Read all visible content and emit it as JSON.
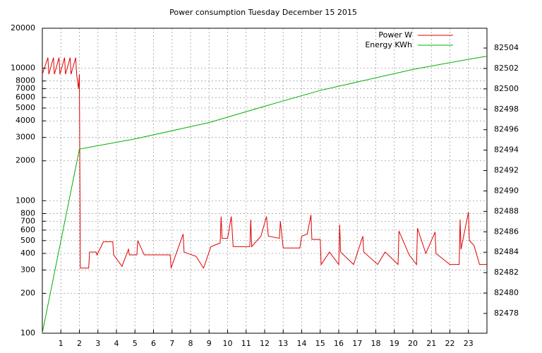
{
  "chart_data": {
    "type": "line",
    "title": "Power consumption Tuesday December 15 2015",
    "xlim": [
      0,
      24
    ],
    "xticks": [
      1,
      2,
      3,
      4,
      5,
      6,
      7,
      8,
      9,
      10,
      11,
      12,
      13,
      14,
      15,
      16,
      17,
      18,
      19,
      20,
      21,
      22,
      23
    ],
    "ylim": [
      100,
      20000
    ],
    "ylog": true,
    "yticks": [
      100,
      200,
      300,
      400,
      500,
      600,
      700,
      800,
      1000,
      2000,
      3000,
      4000,
      5000,
      6000,
      7000,
      8000,
      10000,
      20000
    ],
    "y2lim": [
      82476.06,
      82505.94
    ],
    "y2ticks": [
      82478,
      82480,
      82482,
      82484,
      82486,
      82488,
      82490,
      82492,
      82494,
      82496,
      82498,
      82500,
      82502,
      82504
    ],
    "grid": true,
    "legend": "top-right",
    "series": [
      {
        "name": "Power W",
        "color": "#e00000",
        "x": [
          0,
          0.3,
          0.35,
          0.6,
          0.65,
          0.9,
          0.95,
          1.2,
          1.25,
          1.5,
          1.55,
          1.8,
          1.85,
          1.95,
          2.0,
          2.05,
          2.5,
          2.55,
          2.9,
          2.95,
          3.3,
          3.8,
          3.85,
          4.3,
          4.65,
          4.7,
          5.1,
          5.15,
          5.5,
          6.9,
          6.95,
          7.2,
          7.6,
          7.65,
          8.3,
          8.7,
          9.1,
          9.6,
          9.65,
          9.7,
          10.0,
          10.2,
          10.3,
          11.2,
          11.25,
          11.3,
          11.8,
          12.1,
          12.2,
          12.8,
          12.85,
          13.0,
          13.9,
          14.0,
          14.3,
          14.5,
          14.55,
          15.0,
          15.05,
          15.5,
          16.0,
          16.05,
          16.1,
          16.8,
          17.3,
          17.35,
          18.1,
          18.5,
          19.2,
          19.25,
          19.8,
          20.2,
          20.25,
          20.7,
          21.2,
          21.25,
          22.0,
          22.5,
          22.55,
          22.6,
          23.0,
          23.05,
          23.3,
          23.6,
          24
        ],
        "values": [
          9000,
          12000,
          9000,
          12000,
          9000,
          12000,
          9000,
          12000,
          9000,
          12000,
          9000,
          12000,
          9000,
          7000,
          9000,
          310,
          310,
          410,
          410,
          390,
          490,
          490,
          390,
          320,
          430,
          390,
          390,
          500,
          390,
          390,
          310,
          390,
          560,
          410,
          380,
          310,
          450,
          480,
          760,
          520,
          520,
          760,
          450,
          450,
          720,
          450,
          540,
          760,
          540,
          520,
          700,
          440,
          440,
          540,
          560,
          780,
          510,
          510,
          330,
          410,
          330,
          660,
          410,
          330,
          540,
          410,
          330,
          410,
          330,
          590,
          390,
          330,
          620,
          400,
          580,
          400,
          330,
          330,
          720,
          430,
          820,
          500,
          460,
          330,
          330
        ]
      },
      {
        "name": "Energy KWh",
        "color": "#00b000",
        "axis": "y2",
        "x": [
          0,
          2,
          5,
          9,
          12,
          15,
          20,
          23,
          24
        ],
        "values": [
          82476.1,
          82494.1,
          82495.1,
          82496.7,
          82498.3,
          82499.85,
          82501.9,
          82502.9,
          82503.2
        ]
      }
    ]
  }
}
